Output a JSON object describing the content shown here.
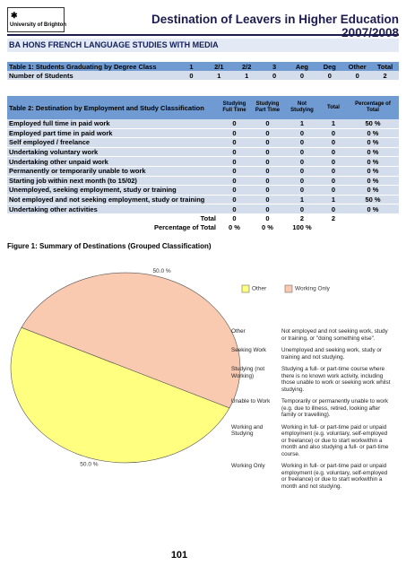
{
  "header": {
    "logo": "University of Brighton",
    "title": "Destination of Leavers in Higher Education 2007/2008"
  },
  "course": "BA HONS FRENCH LANGUAGE STUDIES WITH MEDIA",
  "table1": {
    "header": [
      "Table 1: Students Graduating by Degree Class",
      "1",
      "2/1",
      "2/2",
      "3",
      "Aeg",
      "Deg",
      "Other",
      "Total"
    ],
    "rows": [
      [
        "Number of Students",
        "0",
        "1",
        "1",
        "0",
        "0",
        "0",
        "0",
        "2"
      ]
    ]
  },
  "table2": {
    "header": [
      "Table 2: Destination by Employment and Study Classification",
      "Studying Full Time",
      "Studying Part Time",
      "Not Studying",
      "Total",
      "Percentage of Total"
    ],
    "rows": [
      [
        "Employed full time in paid work",
        "0",
        "0",
        "1",
        "1",
        "50 %"
      ],
      [
        "Employed part time in paid work",
        "0",
        "0",
        "0",
        "0",
        "0 %"
      ],
      [
        "Self employed / freelance",
        "0",
        "0",
        "0",
        "0",
        "0 %"
      ],
      [
        "Undertaking voluntary work",
        "0",
        "0",
        "0",
        "0",
        "0 %"
      ],
      [
        "Undertaking other unpaid work",
        "0",
        "0",
        "0",
        "0",
        "0 %"
      ],
      [
        "Permanently or temporarily unable to work",
        "0",
        "0",
        "0",
        "0",
        "0 %"
      ],
      [
        "Starting job within next month (to 15/02)",
        "0",
        "0",
        "0",
        "0",
        "0 %"
      ],
      [
        "Unemployed, seeking employment, study or training",
        "0",
        "0",
        "0",
        "0",
        "0 %"
      ],
      [
        "Not employed and not seeking employment, study or training",
        "0",
        "0",
        "1",
        "1",
        "50 %"
      ],
      [
        "Undertaking other activities",
        "0",
        "0",
        "0",
        "0",
        "0 %"
      ]
    ],
    "total_rows": [
      [
        "Total",
        "0",
        "0",
        "2",
        "2"
      ],
      [
        "Percentage of Total",
        "0 %",
        "0 %",
        "100 %"
      ]
    ]
  },
  "chart_data": {
    "type": "pie",
    "title": "Figure 1: Summary of Destinations (Grouped Classification)",
    "categories": [
      "Other",
      "Working Only"
    ],
    "values": [
      50,
      50
    ],
    "value_labels": [
      "50.0 %",
      "50.0 %"
    ],
    "colors": [
      "#ffff80",
      "#f9c9b0"
    ]
  },
  "definitions": [
    {
      "term": "Other",
      "text": "Not employed and not seeking work, study or training, or \"doing something else\"."
    },
    {
      "term": "Seeking Work",
      "text": "Unemployed and seeking work, study or training and not studying."
    },
    {
      "term": "Studying (not Working)",
      "text": "Studying a full- or part-time course where there is no known work activity, including those unable to work or seeking work whilst studying."
    },
    {
      "term": "Unable to Work",
      "text": "Temporarily or permanently unable to work (e.g. due to illness, retired, looking after family or travelling)."
    },
    {
      "term": "Working and Studying",
      "text": "Working in full- or part-time paid or unpaid employment (e.g. voluntary, self-employed or freelance) or due to start workwithin a month and also studying a full- or part-time course."
    },
    {
      "term": "Working Only",
      "text": "Working in full- or part-time paid or unpaid employment (e.g. voluntary, self-employed or freelance) or due to start workwithin a month and not studying."
    }
  ],
  "page_number": "101"
}
